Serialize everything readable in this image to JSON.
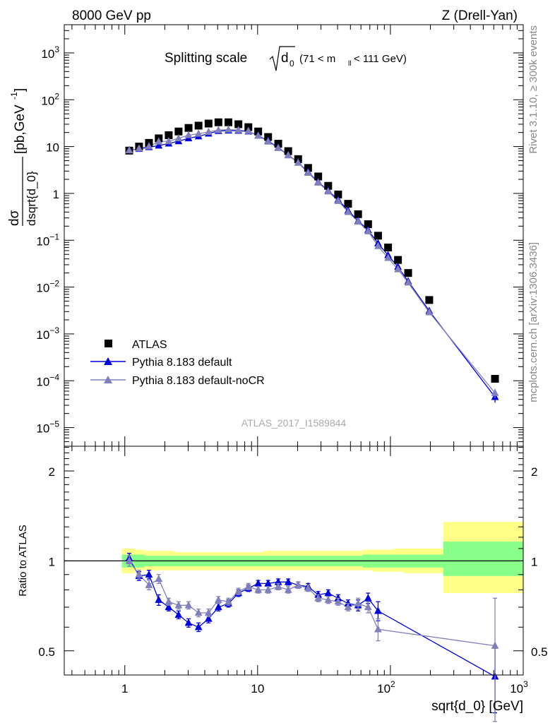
{
  "header": {
    "left_label": "8000 GeV pp",
    "right_label": "Z (Drell-Yan)"
  },
  "side_labels": {
    "rivet": "Rivet 3.1.10, ≥ 300k events",
    "mcplots": "mcplots.cern.ch [arXiv:1306.3436]"
  },
  "chart_data": [
    {
      "type": "scatter",
      "title_main": "Splitting scale",
      "title_sym": "d",
      "title_sym_sub": "0",
      "title_range_pre": "(71 < m",
      "title_range_sub": "ll",
      "title_range_post": " < 111 GeV)",
      "ylabel_num": "dσ",
      "ylabel_den": "dsqrt{d_0}",
      "ylabel_units": "[pb,GeV",
      "ylabel_units_sup": "-1",
      "ylabel_units_close": "]",
      "xlim": [
        0.35,
        1000
      ],
      "ylim": [
        4e-06,
        4000
      ],
      "yscale": "log",
      "xscale": "log",
      "y_ticks": [
        {
          "v": 1e-05,
          "b": "10",
          "e": "−5"
        },
        {
          "v": 0.0001,
          "b": "10",
          "e": "−4"
        },
        {
          "v": 0.001,
          "b": "10",
          "e": "−3"
        },
        {
          "v": 0.01,
          "b": "10",
          "e": "−2"
        },
        {
          "v": 0.1,
          "b": "10",
          "e": "−1"
        },
        {
          "v": 1,
          "b": "1",
          "e": ""
        },
        {
          "v": 10,
          "b": "10",
          "e": ""
        },
        {
          "v": 100,
          "b": "10",
          "e": "2"
        },
        {
          "v": 1000,
          "b": "10",
          "e": "3"
        }
      ],
      "watermark": "ATLAS_2017_I1589844",
      "legend_position": "lower-left",
      "series": [
        {
          "name": "ATLAS",
          "marker": "square",
          "color": "#000000",
          "x": [
            1.08,
            1.28,
            1.52,
            1.8,
            2.14,
            2.54,
            3.02,
            3.59,
            4.27,
            5.07,
            6.03,
            7.17,
            8.52,
            10.1,
            12.0,
            14.3,
            17.0,
            20.2,
            24.0,
            28.6,
            34.0,
            40.4,
            48.0,
            57.1,
            67.9,
            80.7,
            96,
            114,
            136,
            196,
            613
          ],
          "y": [
            8.2,
            10,
            12,
            15,
            17.5,
            21,
            25,
            28,
            31,
            33,
            33,
            30,
            26,
            21,
            16,
            11.5,
            8,
            5.4,
            3.5,
            2.3,
            1.45,
            0.95,
            0.6,
            0.36,
            0.22,
            0.125,
            0.07,
            0.038,
            0.02,
            0.0053,
            0.00011
          ]
        },
        {
          "name": "Pythia 8.183 default",
          "marker": "triangle",
          "color": "#0000dd",
          "x": [
            1.08,
            1.28,
            1.52,
            1.8,
            2.14,
            2.54,
            3.02,
            3.59,
            4.27,
            5.07,
            6.03,
            7.17,
            8.52,
            10.1,
            12.0,
            14.3,
            17.0,
            20.2,
            24.0,
            28.6,
            34.0,
            40.4,
            48.0,
            57.1,
            67.9,
            80.7,
            96,
            114,
            136,
            196,
            613
          ],
          "y": [
            8.4,
            8.9,
            9.7,
            10.5,
            11.6,
            13,
            15,
            16.5,
            19,
            21.5,
            22,
            21.8,
            21,
            17.2,
            13.2,
            9.5,
            6.6,
            4.55,
            2.85,
            1.75,
            1.14,
            0.73,
            0.43,
            0.26,
            0.165,
            0.086,
            0.048,
            0.027,
            0.0133,
            0.0031,
            4.5e-05
          ],
          "yerr": [
            0,
            0,
            0,
            0,
            0,
            0,
            0,
            0,
            0,
            0,
            0,
            0,
            0,
            0,
            0,
            0,
            0,
            0,
            0,
            0,
            0,
            0,
            0,
            0,
            0,
            0,
            0,
            0,
            0,
            0,
            1.1e-05
          ]
        },
        {
          "name": "Pythia 8.183 default-noCR",
          "marker": "triangle",
          "color": "#8080bb",
          "x": [
            1.08,
            1.28,
            1.52,
            1.8,
            2.14,
            2.54,
            3.02,
            3.59,
            4.27,
            5.07,
            6.03,
            7.17,
            8.52,
            10.1,
            12.0,
            14.3,
            17.0,
            20.2,
            24.0,
            28.6,
            34.0,
            40.4,
            48.0,
            57.1,
            67.9,
            80.7,
            96,
            114,
            136,
            196,
            613
          ],
          "y": [
            8.3,
            9.1,
            10.1,
            12.8,
            13,
            15,
            17.5,
            18.8,
            20.5,
            22.5,
            23,
            22.5,
            21.5,
            17,
            12.8,
            9.3,
            6.5,
            4.5,
            2.75,
            1.7,
            1.1,
            0.69,
            0.4,
            0.25,
            0.155,
            0.075,
            0.042,
            0.024,
            0.0125,
            0.0029,
            5.5e-05
          ],
          "yerr": [
            0,
            0,
            0,
            0,
            0,
            0,
            0,
            0,
            0,
            0,
            0,
            0,
            0,
            0,
            0,
            0,
            0,
            0,
            0,
            0,
            0,
            0,
            0,
            0,
            0,
            0,
            0,
            0,
            0,
            0,
            1.2e-05
          ]
        }
      ]
    },
    {
      "type": "line",
      "ylabel": "Ratio to ATLAS",
      "xlabel": "sqrt{d_0} [GeV]",
      "xlim": [
        0.35,
        1000
      ],
      "ylim": [
        0.415,
        2.42
      ],
      "yscale": "log",
      "xscale": "log",
      "reference_line": 1,
      "x_ticks": [
        {
          "v": 1,
          "b": "1",
          "e": ""
        },
        {
          "v": 10,
          "b": "10",
          "e": ""
        },
        {
          "v": 100,
          "b": "10",
          "e": "2"
        },
        {
          "v": 1000,
          "b": "10",
          "e": "3"
        }
      ],
      "y_ticks": [
        {
          "v": 0.5,
          "label": "0.5"
        },
        {
          "v": 1,
          "label": "1"
        },
        {
          "v": 2,
          "label": "2"
        }
      ],
      "bands": {
        "edges": [
          0.95,
          1.19,
          1.4,
          1.65,
          1.95,
          2.35,
          2.8,
          3.3,
          3.9,
          4.6,
          5.5,
          6.5,
          7.8,
          9.3,
          11,
          13,
          15.5,
          18.5,
          22,
          26,
          31,
          37,
          44,
          52,
          62,
          74,
          88,
          105,
          125,
          150,
          250,
          1000
        ],
        "stat_syst_lo": [
          0.91,
          0.93,
          0.93,
          0.93,
          0.93,
          0.93,
          0.93,
          0.93,
          0.93,
          0.93,
          0.93,
          0.93,
          0.93,
          0.93,
          0.93,
          0.93,
          0.93,
          0.93,
          0.93,
          0.93,
          0.93,
          0.93,
          0.93,
          0.93,
          0.93,
          0.92,
          0.92,
          0.92,
          0.91,
          0.91,
          0.78
        ],
        "stat_syst_hi": [
          1.1,
          1.09,
          1.08,
          1.08,
          1.08,
          1.07,
          1.07,
          1.07,
          1.07,
          1.07,
          1.07,
          1.07,
          1.07,
          1.07,
          1.08,
          1.08,
          1.08,
          1.08,
          1.08,
          1.08,
          1.08,
          1.08,
          1.08,
          1.08,
          1.09,
          1.09,
          1.09,
          1.1,
          1.1,
          1.1,
          1.35
        ],
        "stat_lo": [
          0.95,
          0.95,
          0.96,
          0.96,
          0.96,
          0.96,
          0.96,
          0.96,
          0.96,
          0.96,
          0.96,
          0.96,
          0.96,
          0.96,
          0.96,
          0.96,
          0.96,
          0.96,
          0.96,
          0.96,
          0.96,
          0.96,
          0.96,
          0.96,
          0.95,
          0.95,
          0.95,
          0.95,
          0.95,
          0.95,
          0.89
        ],
        "stat_hi": [
          1.05,
          1.05,
          1.04,
          1.04,
          1.04,
          1.04,
          1.04,
          1.04,
          1.04,
          1.04,
          1.04,
          1.04,
          1.04,
          1.04,
          1.04,
          1.04,
          1.04,
          1.04,
          1.04,
          1.04,
          1.04,
          1.04,
          1.04,
          1.04,
          1.05,
          1.05,
          1.05,
          1.05,
          1.05,
          1.05,
          1.16
        ]
      },
      "series": [
        {
          "name": "Pythia 8.183 default",
          "color": "#0000dd",
          "x": [
            1.08,
            1.28,
            1.52,
            1.8,
            2.14,
            2.54,
            3.02,
            3.59,
            4.27,
            5.07,
            6.03,
            7.17,
            8.52,
            10.1,
            12.0,
            14.3,
            17.0,
            20.2,
            24.0,
            28.6,
            34.0,
            40.4,
            48.0,
            57.1,
            67.9,
            80.7,
            613
          ],
          "y": [
            1.02,
            0.89,
            0.9,
            0.74,
            0.7,
            0.66,
            0.62,
            0.6,
            0.64,
            0.7,
            0.72,
            0.78,
            0.81,
            0.84,
            0.84,
            0.85,
            0.85,
            0.83,
            0.82,
            0.77,
            0.78,
            0.75,
            0.72,
            0.71,
            0.75,
            0.68,
            0.41
          ],
          "yerr": [
            0.04,
            0.03,
            0.03,
            0.03,
            0.02,
            0.02,
            0.02,
            0.02,
            0.02,
            0.02,
            0.02,
            0.02,
            0.02,
            0.02,
            0.02,
            0.02,
            0.02,
            0.02,
            0.02,
            0.02,
            0.02,
            0.02,
            0.02,
            0.03,
            0.03,
            0.05,
            0.1
          ]
        },
        {
          "name": "Pythia 8.183 default-noCR",
          "color": "#8080bb",
          "x": [
            1.08,
            1.28,
            1.52,
            1.8,
            2.14,
            2.54,
            3.02,
            3.59,
            4.27,
            5.07,
            6.03,
            7.17,
            8.52,
            10.1,
            12.0,
            14.3,
            17.0,
            20.2,
            24.0,
            28.6,
            34.0,
            40.4,
            48.0,
            57.1,
            67.9,
            80.7,
            613
          ],
          "y": [
            1.0,
            0.9,
            0.83,
            0.87,
            0.73,
            0.71,
            0.71,
            0.67,
            0.67,
            0.74,
            0.73,
            0.79,
            0.82,
            0.8,
            0.8,
            0.82,
            0.8,
            0.83,
            0.81,
            0.75,
            0.74,
            0.73,
            0.7,
            0.72,
            0.7,
            0.59,
            0.52
          ],
          "yerr": [
            0.04,
            0.03,
            0.03,
            0.03,
            0.02,
            0.02,
            0.02,
            0.02,
            0.02,
            0.02,
            0.02,
            0.02,
            0.02,
            0.02,
            0.02,
            0.02,
            0.02,
            0.02,
            0.02,
            0.02,
            0.02,
            0.02,
            0.02,
            0.03,
            0.03,
            0.05,
            0.23
          ]
        }
      ]
    }
  ]
}
